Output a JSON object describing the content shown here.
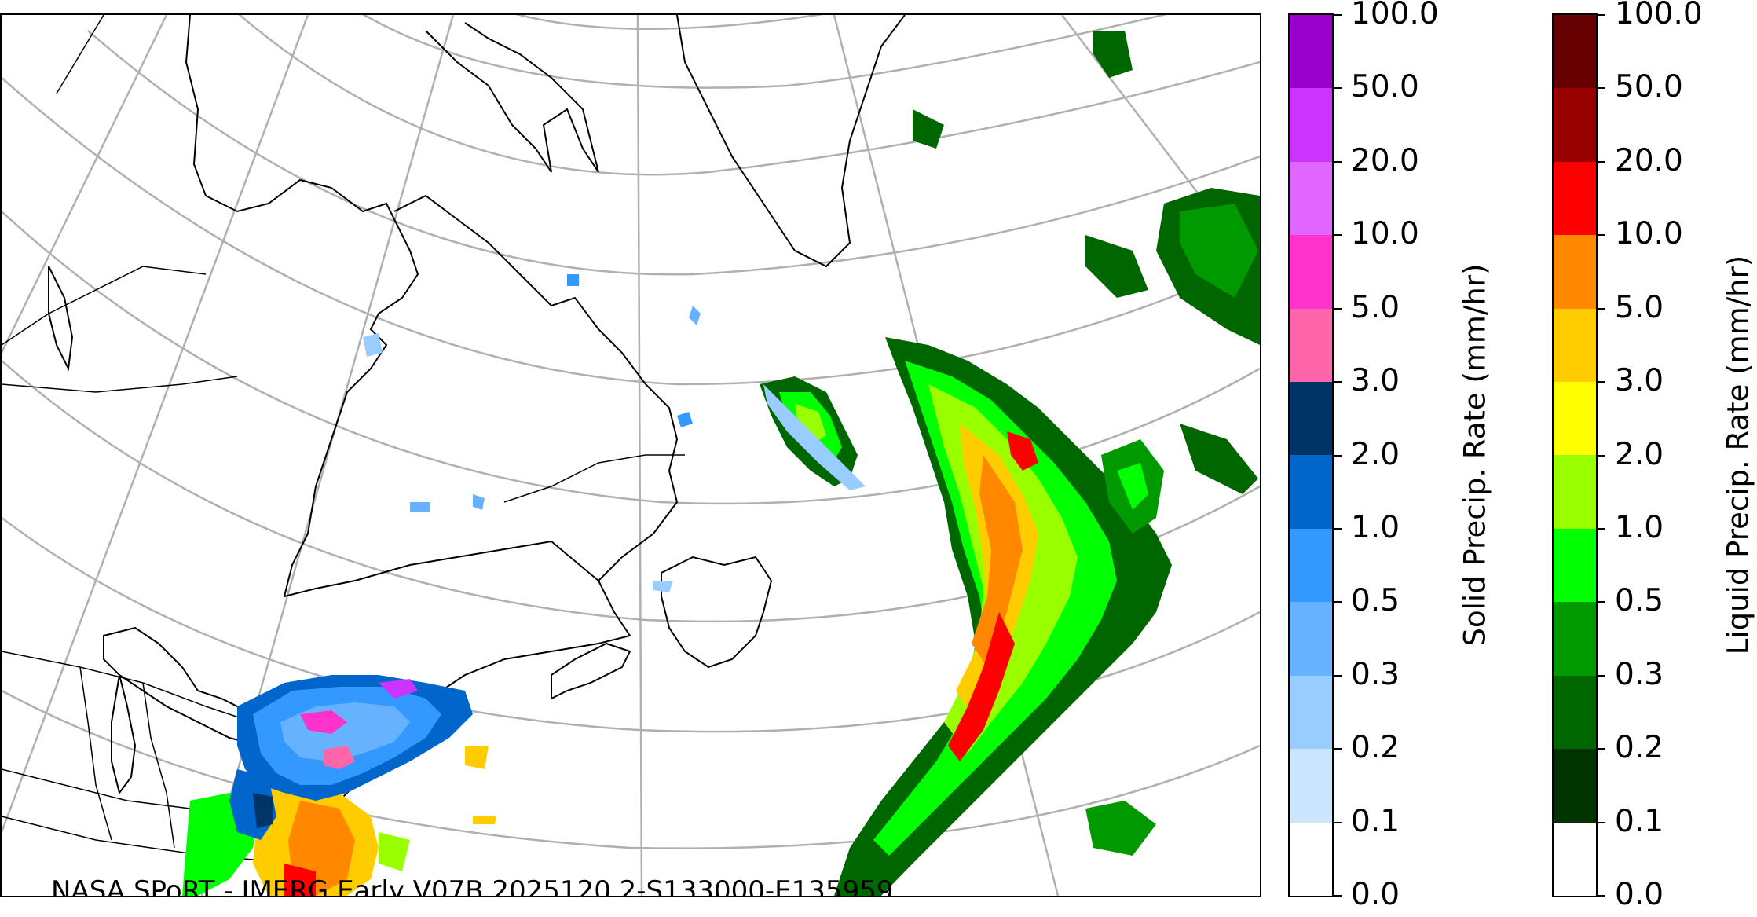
{
  "map": {
    "credit": "NASA SPoRT - IMERG Early V07B 2025120 2-S133000-E135959"
  },
  "colorbars": {
    "solid": {
      "title": "Solid Precip. Rate (mm/hr)",
      "ticks": [
        "0.0",
        "0.1",
        "0.2",
        "0.3",
        "0.5",
        "1.0",
        "2.0",
        "3.0",
        "5.0",
        "10.0",
        "20.0",
        "50.0",
        "100.0"
      ],
      "colors": [
        "#ffffff",
        "#cce5ff",
        "#99ccff",
        "#66b2ff",
        "#3399ff",
        "#0066cc",
        "#003366",
        "#ff66aa",
        "#ff33cc",
        "#e066ff",
        "#cc33ff",
        "#9900cc"
      ]
    },
    "liquid": {
      "title": "Liquid Precip. Rate (mm/hr)",
      "ticks": [
        "0.0",
        "0.1",
        "0.2",
        "0.3",
        "0.5",
        "1.0",
        "2.0",
        "3.0",
        "5.0",
        "10.0",
        "20.0",
        "50.0",
        "100.0"
      ],
      "colors": [
        "#ffffff",
        "#003300",
        "#006600",
        "#009900",
        "#00ff00",
        "#99ff00",
        "#ffff00",
        "#ffcc00",
        "#ff8800",
        "#ff0000",
        "#990000",
        "#660000"
      ]
    }
  }
}
